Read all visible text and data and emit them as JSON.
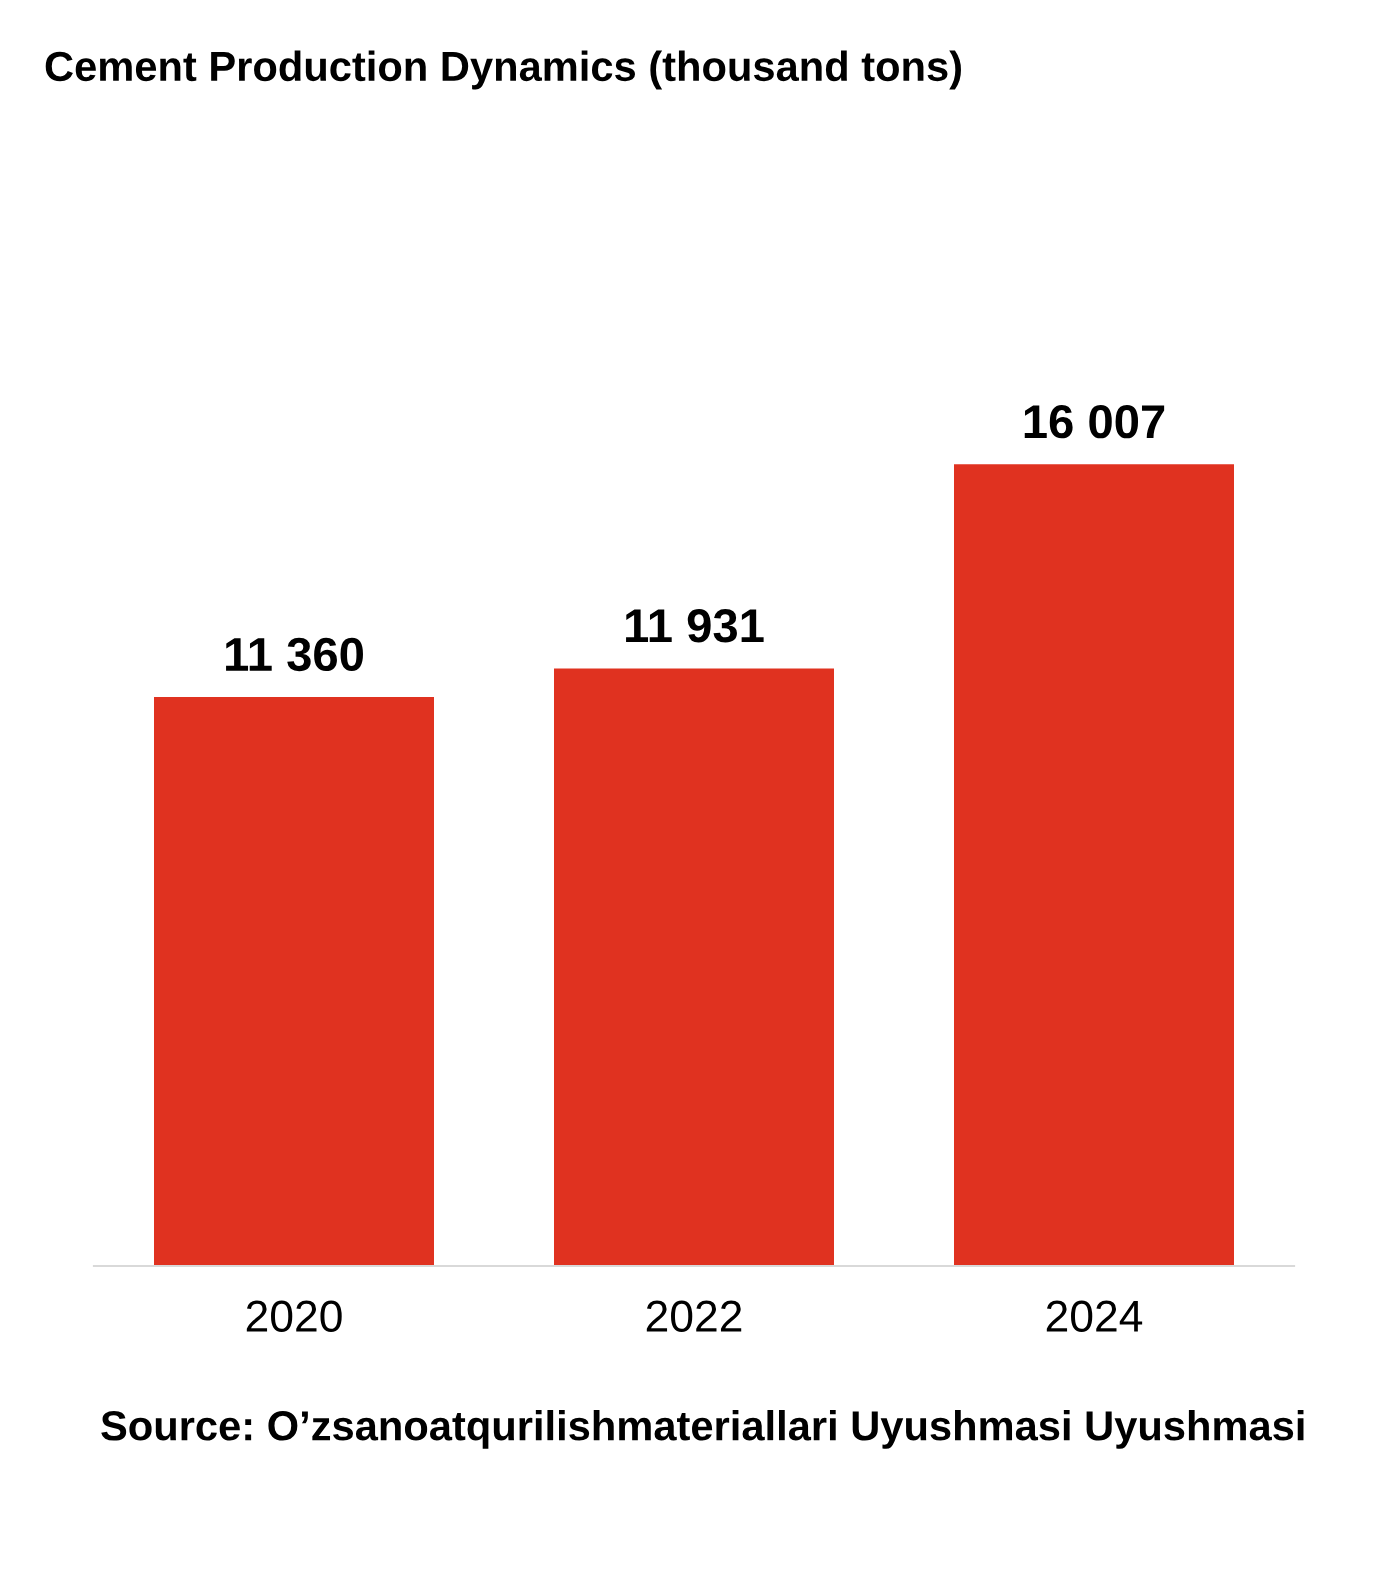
{
  "chart_data": {
    "type": "bar",
    "title": "Cement Production Dynamics (thousand tons)",
    "categories": [
      "2020",
      "2022",
      "2024"
    ],
    "values": [
      11360,
      11931,
      16007
    ],
    "value_labels": [
      "11 360",
      "11 931",
      "16 007"
    ],
    "color": "#e03220",
    "grid": false,
    "legend": false,
    "tick_labels": "x",
    "annotations": [
      "Source: O’zsanoatqurilishmateriallari Uyushmasi Uyushmasi"
    ]
  }
}
